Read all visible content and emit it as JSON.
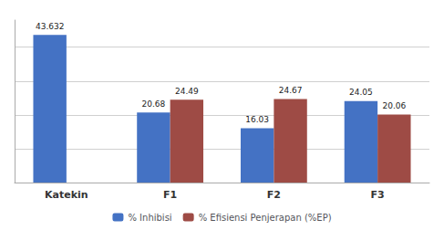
{
  "chart_data": {
    "type": "bar",
    "categories": [
      "Katekin",
      "F1",
      "F2",
      "F3"
    ],
    "series": [
      {
        "name": "% Inhibisi",
        "color": "#4472C4",
        "values": [
          43.632,
          20.68,
          16.03,
          24.05
        ]
      },
      {
        "name": "% Efisiensi Penjerapan (%EP)",
        "color": "#9E4B45",
        "values": [
          null,
          24.49,
          24.67,
          20.06
        ]
      }
    ],
    "ylim": [
      0,
      48
    ],
    "yticks": [
      0,
      10,
      20,
      30,
      40
    ],
    "grid": true,
    "legend": "bottom",
    "data_labels": true,
    "tick_labels": "x"
  }
}
